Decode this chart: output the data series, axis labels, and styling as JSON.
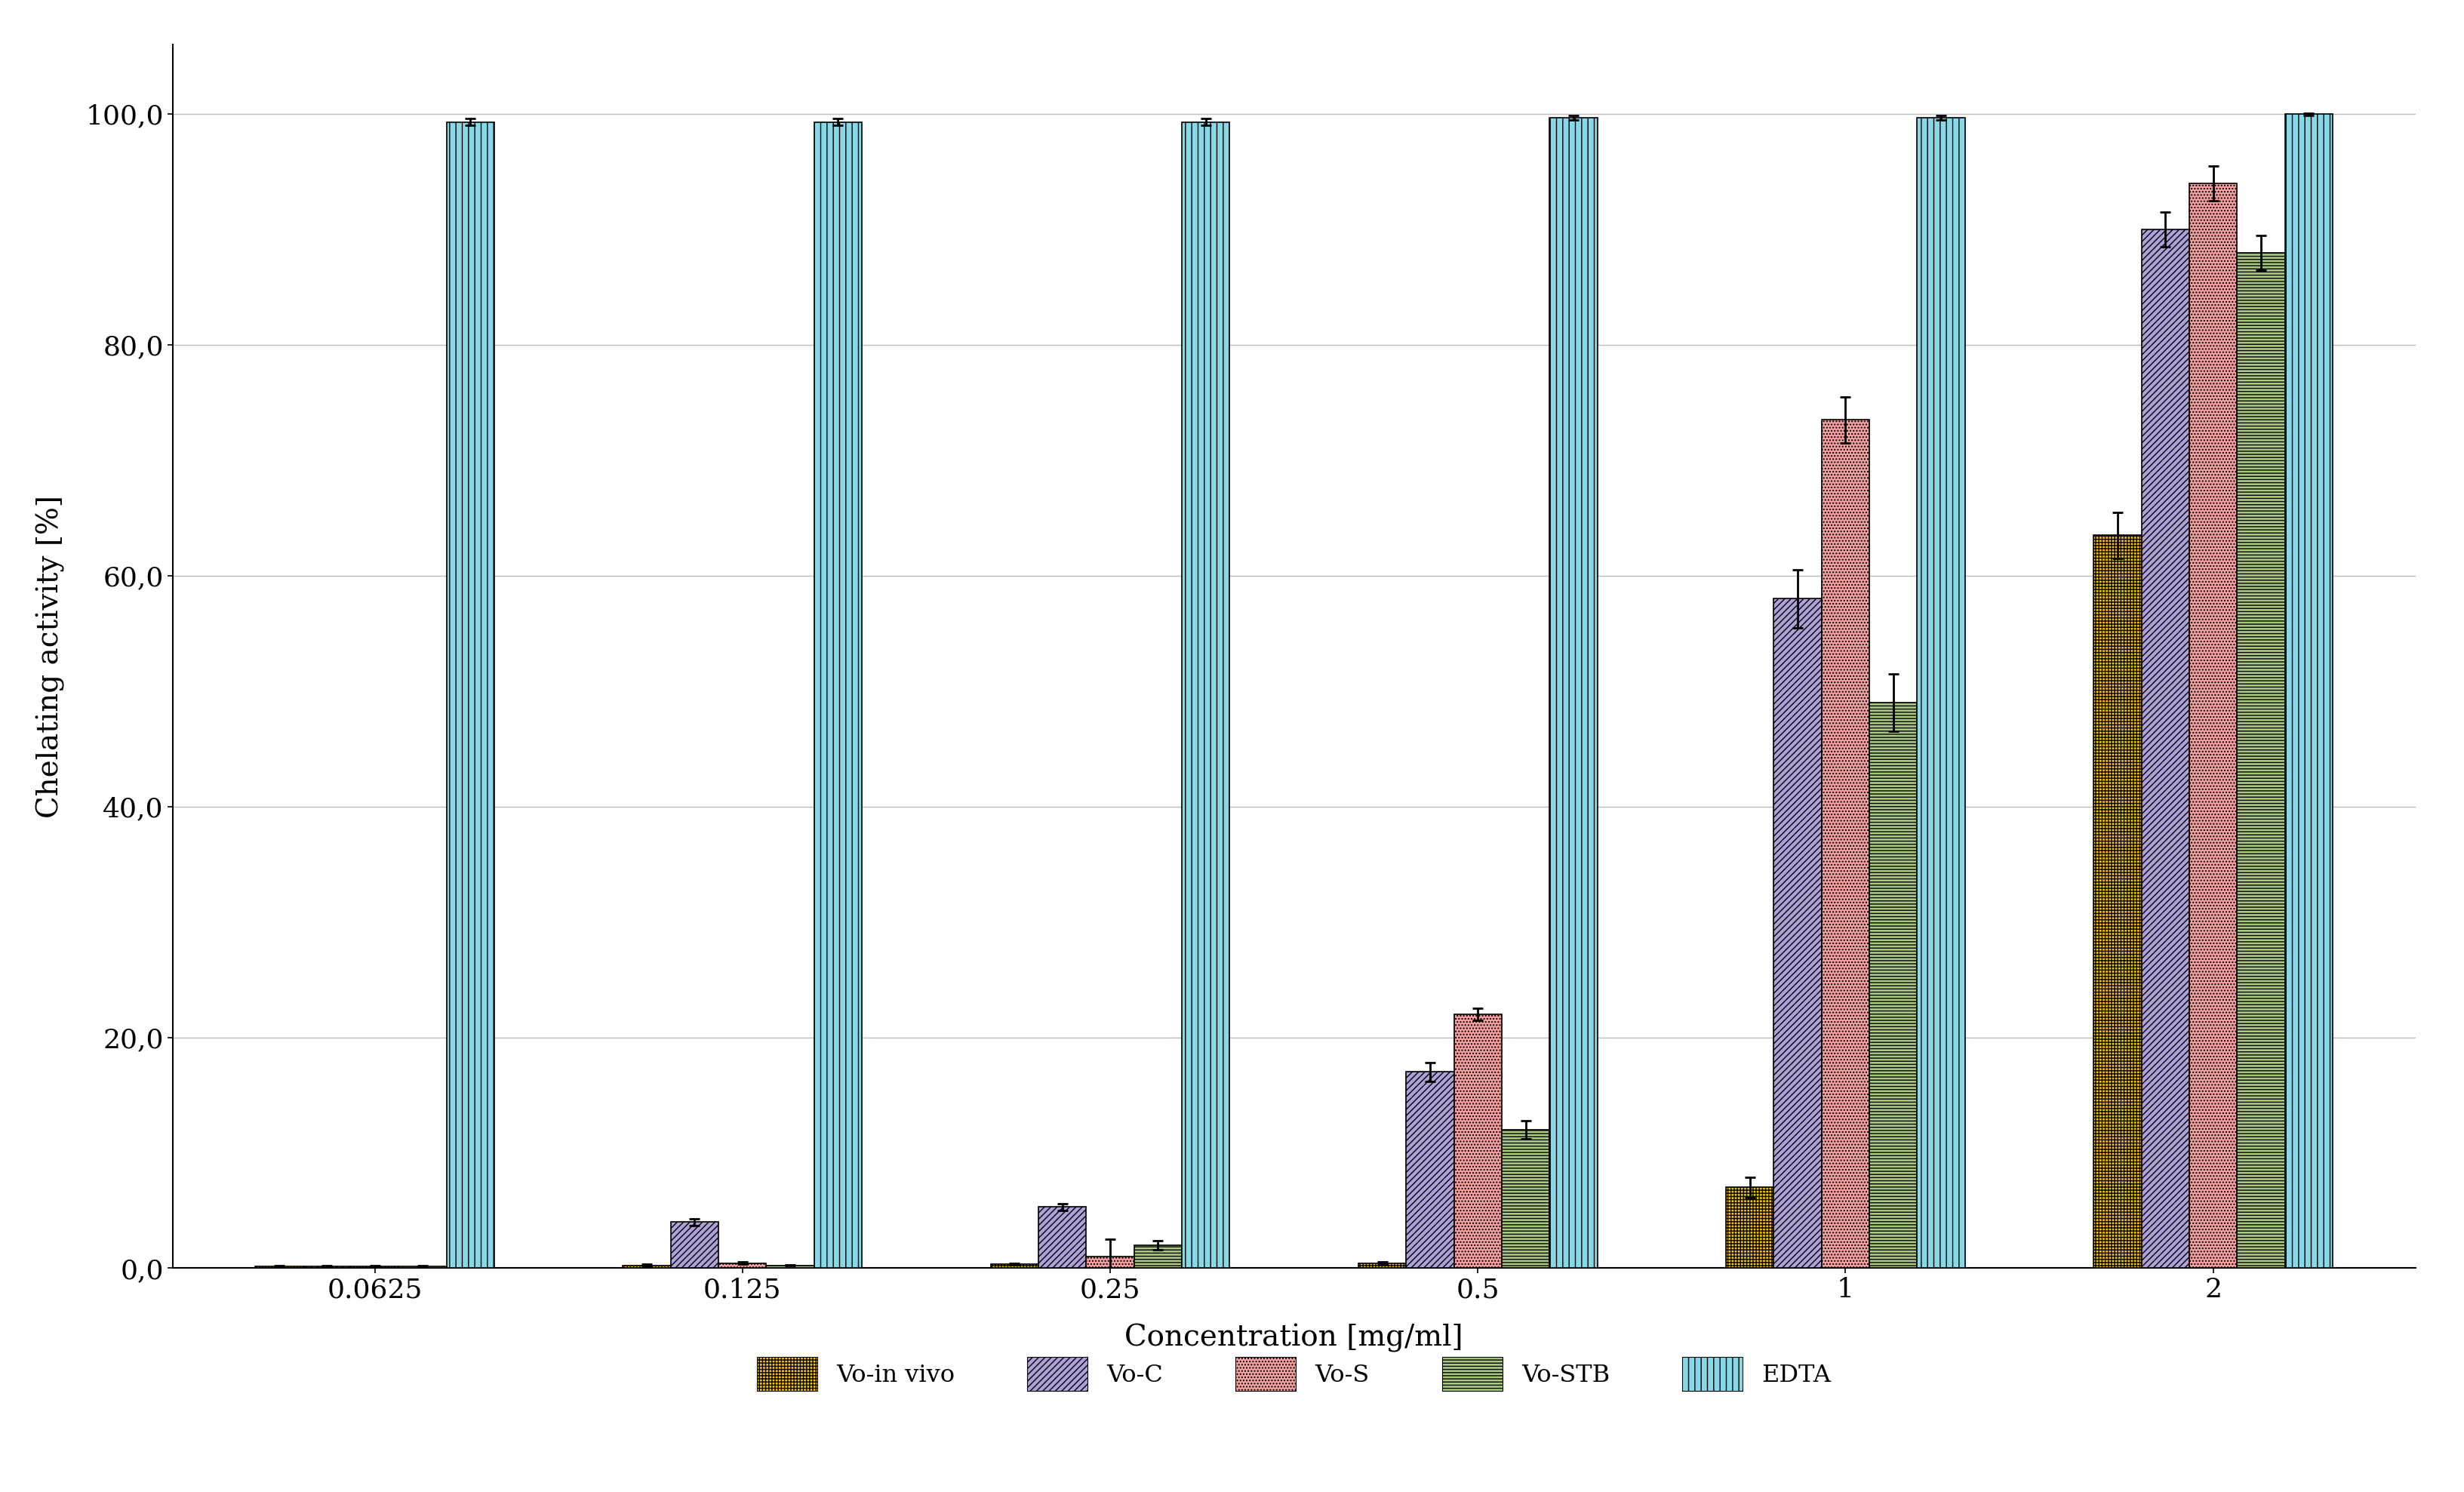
{
  "concentrations": [
    "0.0625",
    "0.125",
    "0.25",
    "0.5",
    "1",
    "2"
  ],
  "series_order": [
    "Vo-in vivo",
    "Vo-C",
    "Vo-S",
    "Vo-STB",
    "EDTA"
  ],
  "series": {
    "Vo-in vivo": {
      "values": [
        0.15,
        0.25,
        0.35,
        0.45,
        7.0,
        63.5
      ],
      "errors": [
        0.05,
        0.08,
        0.05,
        0.08,
        0.9,
        2.0
      ],
      "color": "#F5C200",
      "hatch": "++++"
    },
    "Vo-C": {
      "values": [
        0.15,
        4.0,
        5.3,
        17.0,
        58.0,
        90.0
      ],
      "errors": [
        0.05,
        0.3,
        0.3,
        0.8,
        2.5,
        1.5
      ],
      "color": "#B0A0D8",
      "hatch": "////"
    },
    "Vo-S": {
      "values": [
        0.15,
        0.45,
        1.0,
        22.0,
        73.5,
        94.0
      ],
      "errors": [
        0.05,
        0.1,
        1.5,
        0.5,
        2.0,
        1.5
      ],
      "color": "#F5A0A0",
      "hatch": "...."
    },
    "Vo-STB": {
      "values": [
        0.15,
        0.25,
        2.0,
        12.0,
        49.0,
        88.0
      ],
      "errors": [
        0.05,
        0.05,
        0.4,
        0.8,
        2.5,
        1.5
      ],
      "color": "#A8C880",
      "hatch": "----"
    },
    "EDTA": {
      "values": [
        99.3,
        99.3,
        99.3,
        99.7,
        99.7,
        100.0
      ],
      "errors": [
        0.3,
        0.3,
        0.3,
        0.2,
        0.2,
        0.1
      ],
      "color": "#88D8E8",
      "hatch": "..|..|"
    }
  },
  "ylabel": "Chelating activity [%]",
  "xlabel": "Concentration [mg/ml]",
  "ylim": [
    0,
    106
  ],
  "yticks": [
    0.0,
    20.0,
    40.0,
    60.0,
    80.0,
    100.0
  ],
  "ytick_labels": [
    "0,0",
    "20,0",
    "40,0",
    "60,0",
    "80,0",
    "100,0"
  ],
  "background_color": "#FFFFFF",
  "grid_color": "#BBBBBB",
  "label_fontsize": 28,
  "tick_fontsize": 26,
  "legend_fontsize": 23
}
